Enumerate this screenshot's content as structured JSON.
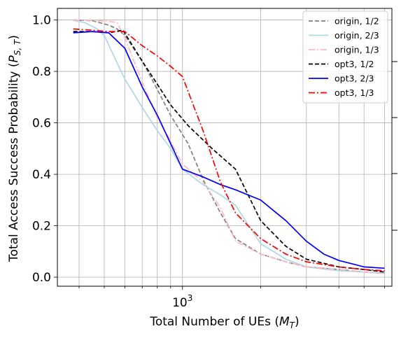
{
  "chart_data": {
    "type": "line",
    "title": "",
    "xlabel": "Total Number of UEs (M_T)",
    "ylabel": "Total Access Success Probability (P_{S,T})",
    "xlabel_parts": {
      "main": "Total Number of UEs (",
      "var": "M",
      "sub": "T",
      "close": ")"
    },
    "ylabel_parts": {
      "main": "Total Access Success Probability (",
      "var": "P",
      "sub": "S, T",
      "close": ")"
    },
    "xscale": "log",
    "xlim": [
      330,
      6400
    ],
    "ylim": [
      -0.035,
      1.045
    ],
    "x_tick_labels": [
      {
        "x": 1000,
        "base": "10",
        "exp": "3"
      }
    ],
    "y_ticks": [
      {
        "v": 0.0,
        "label": "0.0"
      },
      {
        "v": 0.2,
        "label": "0.2"
      },
      {
        "v": 0.4,
        "label": "0.4"
      },
      {
        "v": 0.6,
        "label": "0.6"
      },
      {
        "v": 0.8,
        "label": "0.8"
      },
      {
        "v": 1.0,
        "label": "1.0"
      }
    ],
    "grid": true,
    "legend_position": "top-right",
    "series": [
      {
        "name": "origin, 1/2",
        "color": "#808080",
        "dash": "dashed",
        "points": [
          [
            380,
            1.0
          ],
          [
            450,
            0.997
          ],
          [
            520,
            0.98
          ],
          [
            560,
            0.965
          ],
          [
            600,
            0.94
          ],
          [
            700,
            0.84
          ],
          [
            800,
            0.73
          ],
          [
            900,
            0.63
          ],
          [
            1050,
            0.52
          ],
          [
            1200,
            0.38
          ],
          [
            1400,
            0.25
          ],
          [
            1600,
            0.15
          ],
          [
            2000,
            0.09
          ],
          [
            2500,
            0.06
          ],
          [
            3000,
            0.04
          ],
          [
            4000,
            0.03
          ],
          [
            5000,
            0.02
          ],
          [
            6000,
            0.015
          ]
        ]
      },
      {
        "name": "origin, 2/3",
        "color": "#add8e6",
        "dash": "solid",
        "points": [
          [
            380,
            0.998
          ],
          [
            420,
            0.99
          ],
          [
            470,
            0.965
          ],
          [
            500,
            0.94
          ],
          [
            550,
            0.85
          ],
          [
            600,
            0.77
          ],
          [
            700,
            0.66
          ],
          [
            800,
            0.57
          ],
          [
            900,
            0.5
          ],
          [
            1000,
            0.42
          ],
          [
            1200,
            0.36
          ],
          [
            1400,
            0.32
          ],
          [
            1600,
            0.28
          ],
          [
            1800,
            0.2
          ],
          [
            2000,
            0.13
          ],
          [
            2500,
            0.07
          ],
          [
            3000,
            0.04
          ],
          [
            4000,
            0.025
          ],
          [
            5000,
            0.02
          ],
          [
            6000,
            0.015
          ]
        ]
      },
      {
        "name": "origin, 1/3",
        "color": "#ffb6c1",
        "dash": "dashdot",
        "points": [
          [
            380,
            1.0
          ],
          [
            450,
            0.998
          ],
          [
            520,
            0.995
          ],
          [
            560,
            0.99
          ],
          [
            600,
            0.93
          ],
          [
            700,
            0.76
          ],
          [
            800,
            0.62
          ],
          [
            900,
            0.53
          ],
          [
            1000,
            0.44
          ],
          [
            1200,
            0.37
          ],
          [
            1400,
            0.27
          ],
          [
            1600,
            0.14
          ],
          [
            2000,
            0.09
          ],
          [
            2500,
            0.06
          ],
          [
            3000,
            0.04
          ],
          [
            4000,
            0.03
          ],
          [
            5000,
            0.02
          ],
          [
            6000,
            0.015
          ]
        ]
      },
      {
        "name": "opt3, 1/2",
        "color": "#000000",
        "dash": "dashed",
        "points": [
          [
            380,
            0.955
          ],
          [
            450,
            0.955
          ],
          [
            520,
            0.95
          ],
          [
            590,
            0.96
          ],
          [
            700,
            0.84
          ],
          [
            800,
            0.75
          ],
          [
            900,
            0.67
          ],
          [
            1050,
            0.59
          ],
          [
            1300,
            0.5
          ],
          [
            1600,
            0.42
          ],
          [
            2000,
            0.22
          ],
          [
            2500,
            0.12
          ],
          [
            3000,
            0.07
          ],
          [
            4000,
            0.04
          ],
          [
            5000,
            0.03
          ],
          [
            6000,
            0.02
          ]
        ]
      },
      {
        "name": "opt3, 2/3",
        "color": "#0000ff",
        "dash": "solid",
        "points": [
          [
            380,
            0.95
          ],
          [
            450,
            0.955
          ],
          [
            520,
            0.95
          ],
          [
            600,
            0.89
          ],
          [
            700,
            0.74
          ],
          [
            800,
            0.63
          ],
          [
            900,
            0.52
          ],
          [
            1000,
            0.42
          ],
          [
            1200,
            0.39
          ],
          [
            1400,
            0.36
          ],
          [
            1600,
            0.34
          ],
          [
            2000,
            0.3
          ],
          [
            2500,
            0.22
          ],
          [
            3000,
            0.14
          ],
          [
            3500,
            0.09
          ],
          [
            4000,
            0.065
          ],
          [
            5000,
            0.04
          ],
          [
            6000,
            0.035
          ]
        ]
      },
      {
        "name": "opt3, 1/3",
        "color": "#ff0000",
        "dash": "dashdot",
        "points": [
          [
            380,
            0.965
          ],
          [
            450,
            0.96
          ],
          [
            520,
            0.955
          ],
          [
            600,
            0.955
          ],
          [
            700,
            0.9
          ],
          [
            800,
            0.86
          ],
          [
            900,
            0.82
          ],
          [
            1000,
            0.78
          ],
          [
            1200,
            0.57
          ],
          [
            1400,
            0.37
          ],
          [
            1600,
            0.25
          ],
          [
            2000,
            0.15
          ],
          [
            2500,
            0.09
          ],
          [
            3000,
            0.06
          ],
          [
            4000,
            0.04
          ],
          [
            5000,
            0.03
          ],
          [
            6000,
            0.025
          ]
        ]
      }
    ]
  }
}
